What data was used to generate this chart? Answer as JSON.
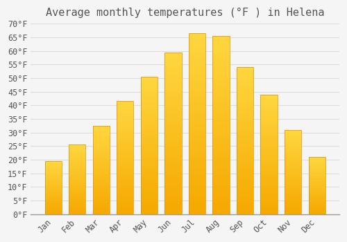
{
  "title": "Average monthly temperatures (°F ) in Helena",
  "months": [
    "Jan",
    "Feb",
    "Mar",
    "Apr",
    "May",
    "Jun",
    "Jul",
    "Aug",
    "Sep",
    "Oct",
    "Nov",
    "Dec"
  ],
  "values": [
    19.5,
    25.5,
    32.5,
    41.5,
    50.5,
    59.5,
    66.5,
    65.5,
    54.0,
    44.0,
    31.0,
    21.0
  ],
  "bar_color_bottom": "#F5A800",
  "bar_color_top": "#FFD740",
  "bar_edge_color": "#E09000",
  "background_color": "#F5F5F5",
  "grid_color": "#DDDDDD",
  "text_color": "#555555",
  "ylim": [
    0,
    70
  ],
  "ytick_step": 5,
  "title_fontsize": 11,
  "tick_fontsize": 8.5
}
